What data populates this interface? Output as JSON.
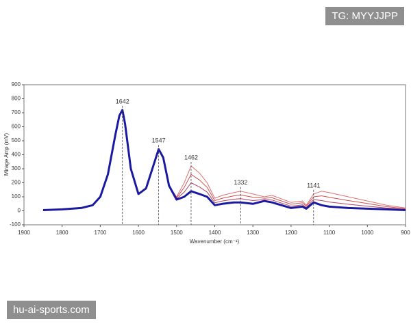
{
  "chart_data": {
    "type": "line",
    "xlabel": "Wavenumber (cm⁻¹)",
    "ylabel": "Mirage Amp (mV)",
    "xlim": [
      1900,
      900
    ],
    "ylim": [
      -100,
      900
    ],
    "xticks": [
      1900,
      1800,
      1700,
      1600,
      1500,
      1400,
      1300,
      1200,
      1100,
      1000,
      900
    ],
    "yticks": [
      -100,
      0,
      100,
      200,
      300,
      400,
      500,
      600,
      700,
      800,
      900
    ],
    "grid": false,
    "x": [
      1850,
      1800,
      1750,
      1720,
      1700,
      1680,
      1660,
      1650,
      1642,
      1635,
      1620,
      1600,
      1580,
      1560,
      1547,
      1535,
      1520,
      1500,
      1480,
      1462,
      1440,
      1420,
      1400,
      1380,
      1350,
      1332,
      1300,
      1270,
      1250,
      1200,
      1170,
      1160,
      1141,
      1120,
      1100,
      1050,
      1000,
      950,
      900
    ],
    "series": [
      {
        "color": "#e07070",
        "values": [
          5,
          10,
          20,
          40,
          100,
          260,
          550,
          680,
          720,
          620,
          300,
          120,
          160,
          330,
          440,
          380,
          180,
          100,
          200,
          320,
          270,
          200,
          90,
          110,
          130,
          140,
          120,
          100,
          110,
          60,
          70,
          40,
          120,
          140,
          130,
          100,
          70,
          40,
          20
        ]
      },
      {
        "color": "#d05050",
        "values": [
          5,
          10,
          20,
          40,
          100,
          260,
          550,
          680,
          720,
          620,
          300,
          120,
          160,
          330,
          440,
          380,
          180,
          93,
          167,
          260,
          220,
          167,
          73,
          90,
          107,
          113,
          97,
          90,
          93,
          47,
          57,
          32,
          100,
          107,
          97,
          73,
          52,
          30,
          15
        ]
      },
      {
        "color": "#b04060",
        "values": [
          5,
          10,
          20,
          40,
          100,
          260,
          550,
          680,
          720,
          620,
          300,
          120,
          160,
          330,
          440,
          380,
          180,
          87,
          133,
          200,
          170,
          133,
          57,
          70,
          83,
          87,
          73,
          80,
          77,
          33,
          43,
          23,
          80,
          73,
          63,
          47,
          33,
          20,
          10
        ]
      },
      {
        "color": "#1a1aa0",
        "values": [
          5,
          10,
          20,
          40,
          100,
          260,
          550,
          680,
          720,
          620,
          300,
          120,
          160,
          330,
          440,
          380,
          180,
          80,
          100,
          140,
          120,
          100,
          40,
          50,
          60,
          60,
          50,
          70,
          60,
          20,
          30,
          15,
          60,
          40,
          30,
          20,
          15,
          10,
          5
        ]
      }
    ],
    "annotations": [
      {
        "text": "1642",
        "x": 1642,
        "color": "#2a2a90"
      },
      {
        "text": "1547",
        "x": 1547,
        "color": "#2a2a90"
      },
      {
        "text": "1462",
        "x": 1462,
        "color": "#b03030"
      },
      {
        "text": "1332",
        "x": 1332,
        "color": "#b03030"
      },
      {
        "text": "1141",
        "x": 1141,
        "color": "#b03030"
      }
    ]
  },
  "overlays": {
    "top_right": "TG: MYYJJPP",
    "bottom_left": "hu-ai-sports.com"
  }
}
